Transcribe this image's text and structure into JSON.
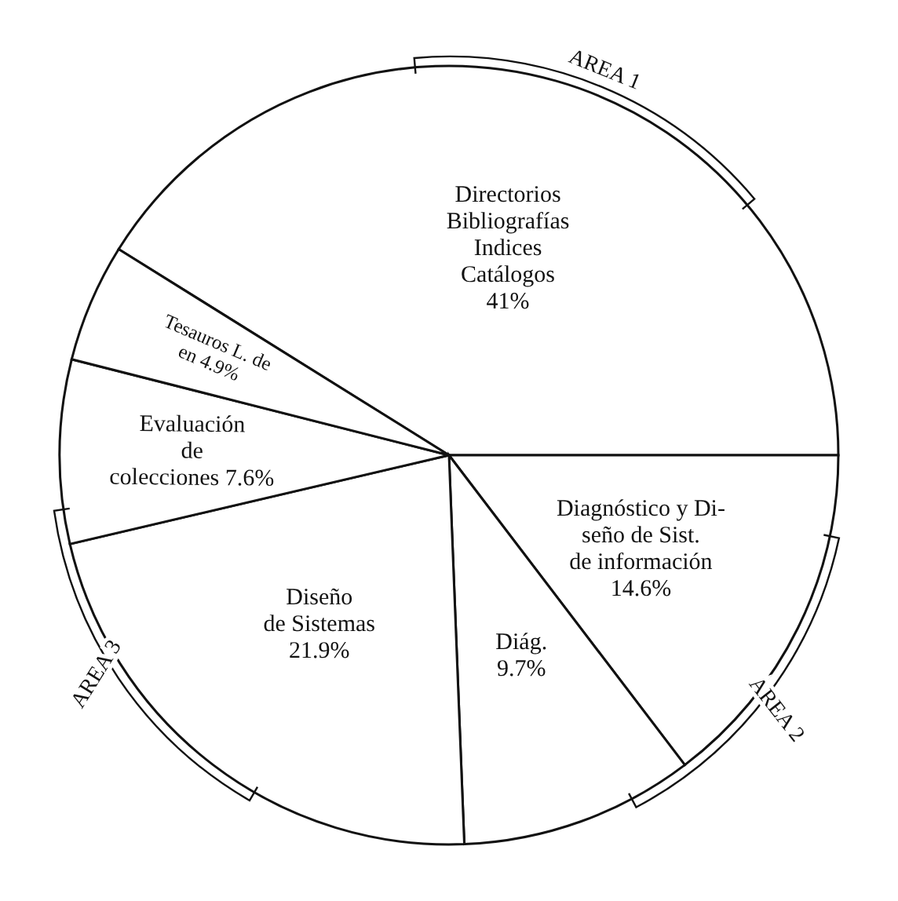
{
  "chart_data": {
    "type": "pie",
    "categories": [
      "Directorios\nBibliografías\nIndices\nCatálogos",
      "Diagnóstico y Di-\nseño de Sist.\nde información",
      "Diág.",
      "Diseño\nde Sistemas",
      "Evaluación\nde\ncolecciones",
      "Tesauros L. de\nen"
    ],
    "values": [
      41,
      14.6,
      9.7,
      21.9,
      7.6,
      4.9
    ],
    "value_labels": [
      "41%",
      "14.6%",
      "9.7%",
      "21.9%",
      "7.6%",
      "4.9%"
    ],
    "colors": [
      "#ffffff",
      "#ffffff",
      "#ffffff",
      "#ffffff",
      "#ffffff",
      "#ffffff"
    ],
    "annotations": [
      "AREA 1",
      "AREA 2",
      "AREA 3"
    ]
  }
}
